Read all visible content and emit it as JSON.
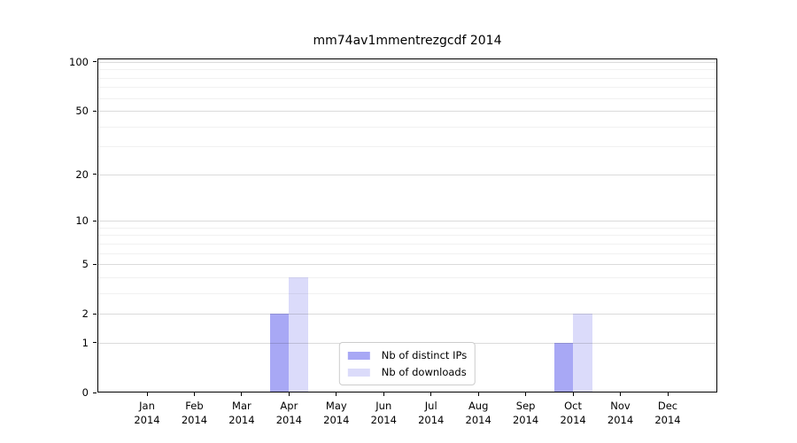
{
  "chart_data": {
    "type": "bar",
    "title": "mm74av1mmentrezgcdf 2014",
    "year_label": "2014",
    "categories": [
      "Jan",
      "Feb",
      "Mar",
      "Apr",
      "May",
      "Jun",
      "Jul",
      "Aug",
      "Sep",
      "Oct",
      "Nov",
      "Dec"
    ],
    "series": [
      {
        "name": "Nb of distinct IPs",
        "color": "#a8a8f5",
        "values": [
          0,
          0,
          0,
          2,
          0,
          0,
          0,
          0,
          0,
          1,
          0,
          0
        ]
      },
      {
        "name": "Nb of downloads",
        "color": "#dbdbfa",
        "values": [
          0,
          0,
          0,
          4,
          0,
          0,
          0,
          0,
          0,
          2,
          0,
          0
        ]
      }
    ],
    "y_axis": {
      "scale": "log1p",
      "ticks": [
        0,
        1,
        2,
        5,
        10,
        20,
        50,
        100
      ],
      "minor_gridlines": [
        3,
        4,
        6,
        7,
        8,
        9,
        30,
        40,
        60,
        70,
        80,
        90
      ],
      "max": 105
    },
    "x_axis": {
      "label_lines": 2
    },
    "legend": {
      "position": "lower center"
    },
    "grid": "horizontal-only, drawn above bars"
  }
}
